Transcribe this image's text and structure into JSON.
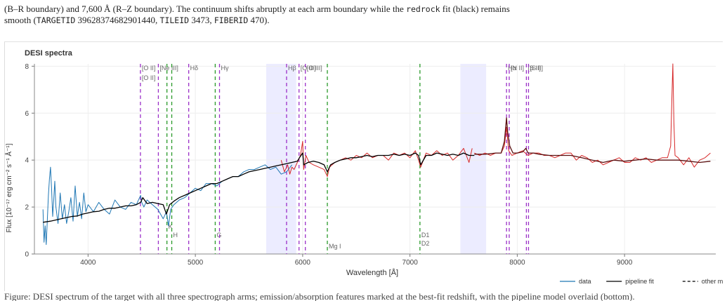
{
  "caption": {
    "top_line1": "(B–R boundary) and 7,600 Å (R–Z boundary). The continuum shifts abruptly at each arm boundary while the ",
    "top_code": "redrock",
    "top_line1_end": " fit (black) remains",
    "top_line2_a": "smooth (",
    "top_code_target": "TARGETID",
    "top_line2_b": " 39628374682901440, ",
    "top_code_tile": "TILEID",
    "top_line2_c": " 3473, ",
    "top_code_fiber": "FIBERID",
    "top_line2_d": " 470).",
    "bottom_text": "Figure: DESI spectrum of the target with all three spectrograph arms; emission/absorption features marked at the best-fit redshift, with the pipeline model overlaid (bottom)."
  },
  "chart_data": {
    "type": "line",
    "title": "DESI spectra",
    "xlabel": "Wavelength [Å]",
    "ylabel": "Flux [10⁻¹⁷ erg cm⁻² s⁻¹ Å⁻¹]",
    "xlim": [
      3500,
      9850
    ],
    "ylim": [
      0,
      8.1
    ],
    "xticks": [
      4000,
      5000,
      6000,
      7000,
      8000,
      9000
    ],
    "yticks": [
      0,
      2,
      4,
      6,
      8
    ],
    "grid": true,
    "legend_position": "bottom-right",
    "legend": [
      {
        "name": "data",
        "color": "#1f77b4",
        "style": "solid"
      },
      {
        "name": "pipeline fit",
        "color": "#000000",
        "style": "solid"
      },
      {
        "name": "other model",
        "color": "#000000",
        "style": "dashed"
      }
    ],
    "colors": {
      "data_blue": "#1f77b4",
      "data_red": "#d62728",
      "fit": "#000000",
      "fit_red_arm": "#5a0f0f",
      "emission": "#9b30c8",
      "absorption": "#2a9a2a",
      "band": "#ececff"
    },
    "shaded_bands": [
      [
        5660,
        5940
      ],
      [
        7470,
        7710
      ]
    ],
    "series": [
      {
        "name": "data",
        "color": "#1f77b4",
        "x": [
          3580,
          3590,
          3600,
          3610,
          3620,
          3630,
          3640,
          3650,
          3660,
          3670,
          3680,
          3690,
          3700,
          3720,
          3740,
          3760,
          3780,
          3800,
          3820,
          3840,
          3860,
          3880,
          3900,
          3920,
          3940,
          3960,
          3980,
          4000,
          4050,
          4100,
          4150,
          4200,
          4250,
          4300,
          4350,
          4400,
          4450,
          4490,
          4500,
          4520,
          4550,
          4600,
          4650,
          4700,
          4730,
          4750,
          4770,
          4800,
          4850,
          4900,
          4950,
          5000,
          5050,
          5100,
          5150,
          5200,
          5250,
          5300,
          5350,
          5400,
          5450,
          5500,
          5550,
          5600,
          5650,
          5700,
          5750,
          5800,
          5850,
          5900
        ],
        "y": [
          1.9,
          0.5,
          1.2,
          0.4,
          1.4,
          2.5,
          3.2,
          3.7,
          2.8,
          1.6,
          2.3,
          3.1,
          2.0,
          1.3,
          2.6,
          1.5,
          2.1,
          1.3,
          1.8,
          2.4,
          1.4,
          2.9,
          1.6,
          2.2,
          1.5,
          2.6,
          1.8,
          2.1,
          1.8,
          2.2,
          1.9,
          1.7,
          2.3,
          2.0,
          1.9,
          2.2,
          2.1,
          2.5,
          2.2,
          2.0,
          2.3,
          2.1,
          1.9,
          1.5,
          1.8,
          1.2,
          1.9,
          2.1,
          2.3,
          2.4,
          2.6,
          2.8,
          2.7,
          3.0,
          3.0,
          2.9,
          3.1,
          3.2,
          3.3,
          3.3,
          3.5,
          3.6,
          3.6,
          3.7,
          3.8,
          3.6,
          3.7,
          3.4,
          3.5,
          3.8
        ]
      },
      {
        "name": "data-red-arm",
        "color": "#d62728",
        "x": [
          5800,
          5830,
          5860,
          5880,
          5900,
          5920,
          5950,
          5980,
          6000,
          6010,
          6030,
          6060,
          6100,
          6150,
          6200,
          6230,
          6250,
          6300,
          6350,
          6400,
          6450,
          6500,
          6550,
          6600,
          6650,
          6700,
          6750,
          6800,
          6850,
          6900,
          6950,
          7000,
          7050,
          7080,
          7100,
          7150,
          7200,
          7250,
          7300,
          7350,
          7400,
          7450,
          7500,
          7550,
          7580
        ],
        "y": [
          4.0,
          3.5,
          3.8,
          3.4,
          3.7,
          3.6,
          3.9,
          4.2,
          4.8,
          3.6,
          4.2,
          3.9,
          3.8,
          3.7,
          3.6,
          3.3,
          3.7,
          3.9,
          4.0,
          4.1,
          4.0,
          4.2,
          4.1,
          4.3,
          4.1,
          4.2,
          4.2,
          4.0,
          4.3,
          4.2,
          4.3,
          4.1,
          4.4,
          4.0,
          3.7,
          4.3,
          4.2,
          4.4,
          4.2,
          4.3,
          4.0,
          4.2,
          4.5,
          3.9,
          4.5
        ]
      },
      {
        "name": "data-z-arm",
        "color": "#d62728",
        "x": [
          7600,
          7650,
          7700,
          7750,
          7800,
          7850,
          7880,
          7900,
          7920,
          7950,
          8000,
          8050,
          8100,
          8150,
          8200,
          8250,
          8300,
          8350,
          8400,
          8450,
          8500,
          8550,
          8600,
          8650,
          8700,
          8750,
          8800,
          8850,
          8900,
          8950,
          9000,
          9050,
          9100,
          9150,
          9200,
          9250,
          9300,
          9350,
          9400,
          9430,
          9440,
          9450,
          9460,
          9470,
          9500,
          9550,
          9600,
          9650,
          9700,
          9750,
          9800
        ],
        "y": [
          4.3,
          4.2,
          4.3,
          4.2,
          4.3,
          4.3,
          4.6,
          5.4,
          4.4,
          4.2,
          4.3,
          4.4,
          4.2,
          4.3,
          4.3,
          4.2,
          4.2,
          4.1,
          4.2,
          4.3,
          4.3,
          4.0,
          4.2,
          4.1,
          3.9,
          4.0,
          3.8,
          3.9,
          4.0,
          4.1,
          3.9,
          3.9,
          4.1,
          4.0,
          4.1,
          3.9,
          4.0,
          4.1,
          4.1,
          4.6,
          6.5,
          8.1,
          5.6,
          4.2,
          4.1,
          3.8,
          4.1,
          3.7,
          4.0,
          4.1,
          4.3
        ]
      },
      {
        "name": "pipeline fit",
        "color": "#000000",
        "x": [
          3580,
          3650,
          3700,
          3750,
          3800,
          3850,
          3900,
          3950,
          4000,
          4050,
          4100,
          4150,
          4200,
          4250,
          4300,
          4350,
          4400,
          4450,
          4490,
          4510,
          4550,
          4600,
          4650,
          4700,
          4730,
          4760,
          4800,
          4850,
          4900,
          4950,
          5000,
          5050,
          5100,
          5150,
          5200,
          5250,
          5300,
          5350,
          5400,
          5450,
          5500,
          5550,
          5600,
          5650,
          5700,
          5750,
          5800,
          5850,
          5900,
          5950,
          5970,
          6000,
          6010,
          6050,
          6100,
          6150,
          6200,
          6230,
          6260,
          6300,
          6350,
          6400,
          6450,
          6500,
          6550,
          6600,
          6650,
          6700,
          6750,
          6800,
          6850,
          6900,
          6950,
          7000,
          7050,
          7080,
          7100,
          7150,
          7200,
          7250,
          7300,
          7350,
          7400,
          7450,
          7500,
          7550,
          7600
        ],
        "y": [
          1.35,
          1.4,
          1.45,
          1.5,
          1.55,
          1.6,
          1.62,
          1.7,
          1.75,
          1.8,
          1.82,
          1.9,
          1.95,
          1.95,
          2.0,
          2.05,
          2.05,
          2.1,
          2.2,
          2.4,
          2.15,
          2.2,
          2.15,
          2.1,
          1.7,
          2.1,
          2.25,
          2.4,
          2.5,
          2.6,
          2.7,
          2.8,
          2.9,
          3.0,
          3.0,
          3.1,
          3.2,
          3.3,
          3.3,
          3.4,
          3.5,
          3.55,
          3.6,
          3.65,
          3.7,
          3.75,
          3.8,
          3.85,
          3.9,
          3.95,
          4.1,
          4.3,
          3.8,
          3.9,
          3.95,
          3.9,
          3.8,
          3.5,
          3.8,
          3.9,
          4.0,
          4.05,
          4.1,
          4.1,
          4.15,
          4.2,
          4.15,
          4.2,
          4.2,
          4.2,
          4.25,
          4.2,
          4.25,
          4.2,
          4.3,
          4.2,
          3.8,
          4.2,
          4.2,
          4.3,
          4.25,
          4.2,
          4.25,
          4.2,
          4.3,
          4.2,
          4.2
        ]
      },
      {
        "name": "pipeline-fit-z-arm",
        "color": "#5a0f0f",
        "x": [
          7600,
          7700,
          7800,
          7850,
          7880,
          7900,
          7910,
          7930,
          7960,
          8000,
          8050,
          8080,
          8100,
          8150,
          8200,
          8300,
          8400,
          8500,
          8600,
          8700,
          8800,
          8900,
          9000,
          9100,
          9200,
          9300,
          9400,
          9500,
          9600,
          9700,
          9800
        ],
        "y": [
          4.25,
          4.25,
          4.3,
          4.3,
          4.8,
          5.8,
          5.2,
          4.6,
          4.3,
          4.3,
          4.35,
          4.5,
          4.3,
          4.3,
          4.25,
          4.2,
          4.2,
          4.2,
          4.1,
          4.0,
          3.9,
          4.0,
          3.95,
          4.0,
          4.05,
          4.0,
          4.0,
          4.0,
          3.95,
          3.9,
          3.95
        ]
      }
    ],
    "line_markers": [
      {
        "x": 3727,
        "kind": "emission",
        "labels": [
          "[O II]",
          "[O II]"
        ]
      },
      {
        "x": 3869,
        "kind": "emission",
        "labels": [
          "[Ne III]"
        ]
      },
      {
        "x": 3934,
        "kind": "absorption",
        "labels": [
          "K"
        ]
      },
      {
        "x": 3969,
        "kind": "absorption",
        "labels": [
          "H"
        ]
      },
      {
        "x": 4102,
        "kind": "emission",
        "labels": [
          "Hδ"
        ]
      },
      {
        "x": 4304,
        "kind": "absorption",
        "labels": [
          "G"
        ]
      },
      {
        "x": 4341,
        "kind": "emission",
        "labels": [
          "Hγ"
        ]
      },
      {
        "x": 4861,
        "kind": "emission",
        "labels": [
          "Hβ"
        ]
      },
      {
        "x": 4959,
        "kind": "emission",
        "labels": [
          "[O III]"
        ]
      },
      {
        "x": 5007,
        "kind": "emission",
        "labels": [
          "[O III]"
        ]
      },
      {
        "x": 5175,
        "kind": "absorption",
        "labels": [
          "Mg I"
        ]
      },
      {
        "x": 5892,
        "kind": "absorption",
        "labels": [
          "D1",
          "D2"
        ]
      },
      {
        "x": 6563,
        "kind": "emission",
        "labels": [
          "Hα"
        ]
      },
      {
        "x": 6584,
        "kind": "emission",
        "labels": [
          "[N II]"
        ]
      },
      {
        "x": 6716,
        "kind": "emission",
        "labels": [
          "[S II]"
        ]
      },
      {
        "x": 6731,
        "kind": "emission",
        "labels": [
          "[S II]"
        ]
      }
    ],
    "observed_positions": [
      4488,
      4655,
      4735,
      4780,
      4938,
      5185,
      5225,
      5850,
      5966,
      6025,
      6230,
      7093,
      7900,
      7925,
      8085,
      8105
    ]
  }
}
